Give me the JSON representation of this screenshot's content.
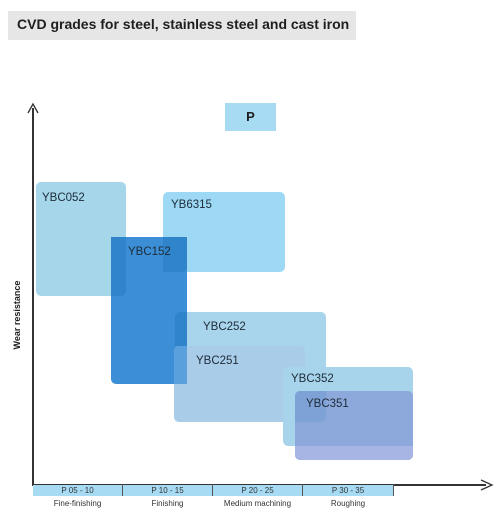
{
  "title": "CVD grades for steel, stainless steel and cast iron",
  "iso_group": "P",
  "y_axis_label": "Wear resistance",
  "ranges": [
    {
      "code": "P 05 - 10",
      "operation": "Fine-finishing"
    },
    {
      "code": "P 10 - 15",
      "operation": "Finishing"
    },
    {
      "code": "P 20 - 25",
      "operation": "Medium machining"
    },
    {
      "code": "P 30 - 35",
      "operation": "Roughing"
    }
  ],
  "grades": [
    {
      "name": "YBC052",
      "color": "#a5d6ea"
    },
    {
      "name": "YBC152",
      "color": "#3c8fd6"
    },
    {
      "name": "YB6315",
      "color": "#9dd9f4"
    },
    {
      "name": "YBC252",
      "color": "#a8d5ec"
    },
    {
      "name": "YBC251",
      "color": "#a9cce8"
    },
    {
      "name": "YBC352",
      "color": "#a7d4ea"
    },
    {
      "name": "YBC351",
      "color": "#8da8da"
    }
  ]
}
